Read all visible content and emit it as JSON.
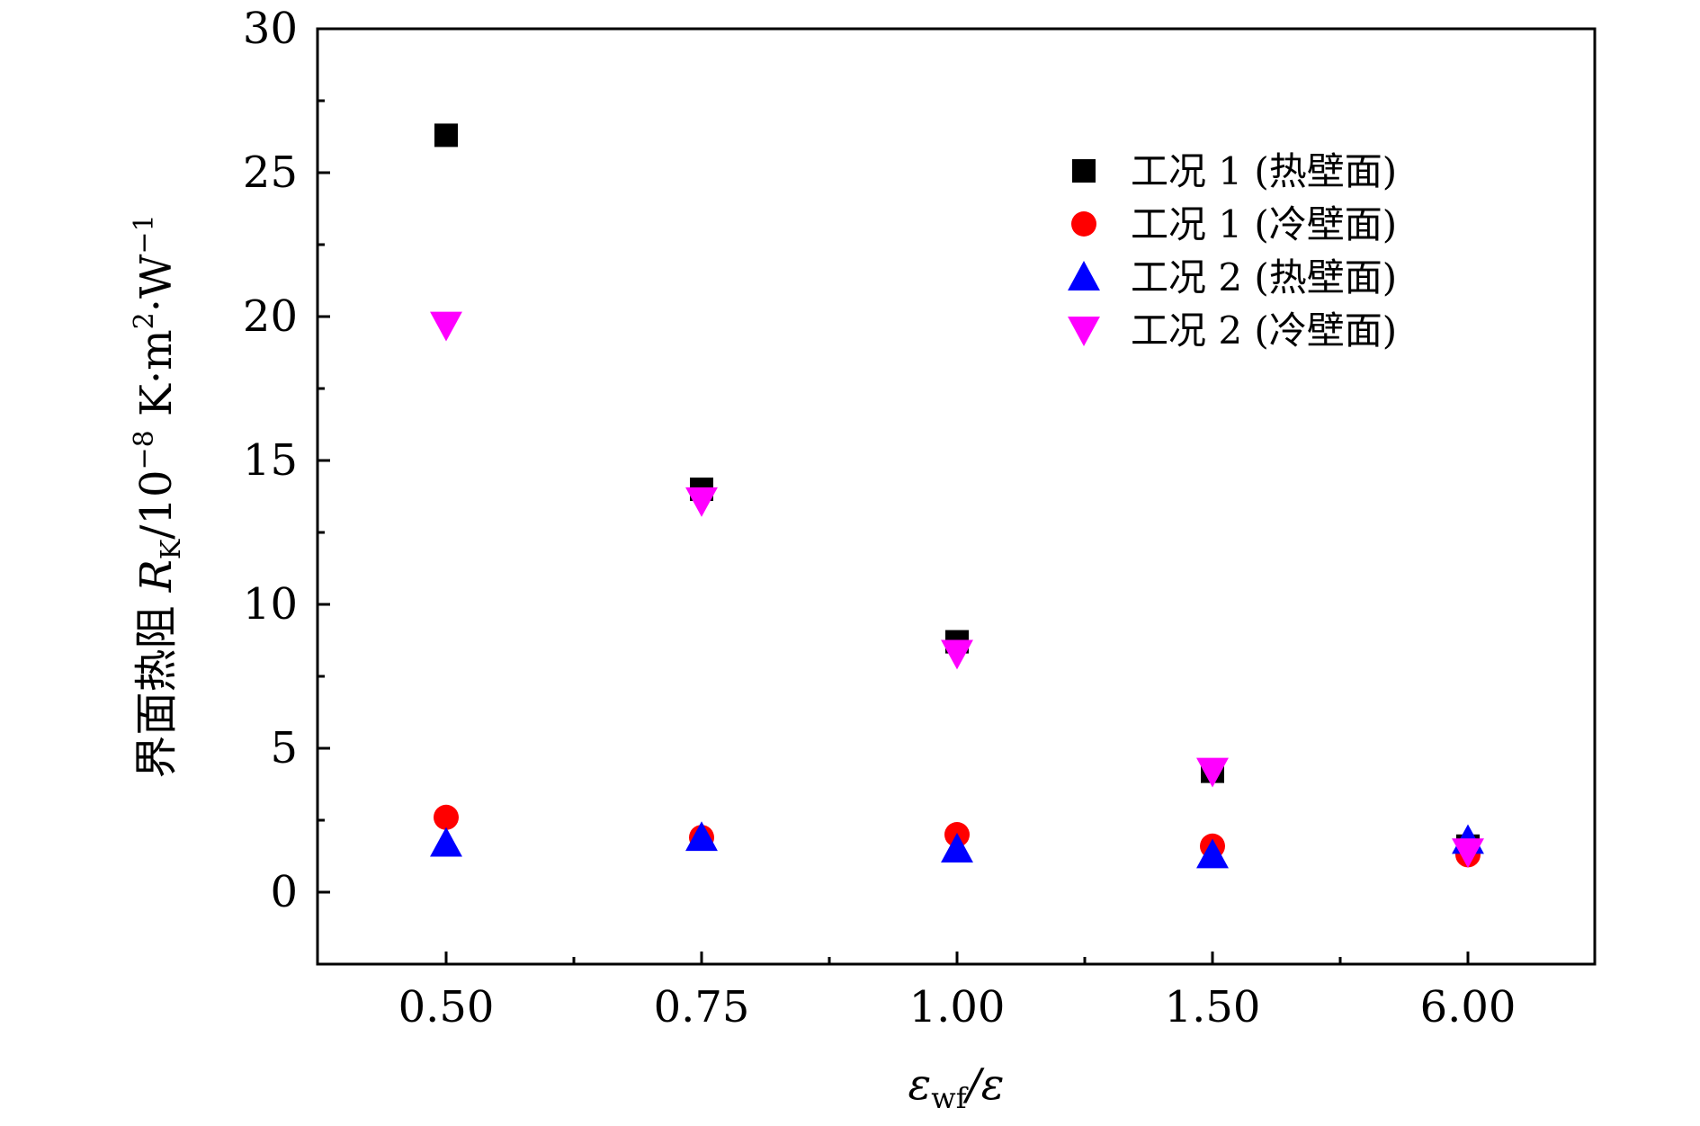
{
  "chart_data": {
    "type": "scatter",
    "xlabel": {
      "main": "ε",
      "sub": "wf",
      "tail": "/ε"
    },
    "ylabel": {
      "prefix": "界面热阻 ",
      "sym": "R",
      "sub": "K",
      "mid": "/10",
      "exp1": "−8",
      "units": " K·m",
      "exp2": "2",
      "units2": "·W",
      "exp3": "−1"
    },
    "categories": [
      "0.50",
      "0.75",
      "1.00",
      "1.50",
      "6.00"
    ],
    "ylim": [
      -2.5,
      30
    ],
    "yticks": [
      0,
      5,
      10,
      15,
      20,
      25,
      30
    ],
    "grid": false,
    "legend_position": "top-right",
    "series": [
      {
        "name": "工况 1 (热壁面)",
        "marker": "square",
        "color": "#000000",
        "values": [
          26.3,
          14.0,
          8.7,
          4.2,
          1.6
        ]
      },
      {
        "name": "工况 1 (冷壁面)",
        "marker": "circle",
        "color": "#ff0000",
        "values": [
          2.6,
          1.9,
          2.0,
          1.6,
          1.3
        ]
      },
      {
        "name": "工况 2 (热壁面)",
        "marker": "triangle-up",
        "color": "#0000ff",
        "values": [
          1.7,
          1.9,
          1.5,
          1.3,
          1.8
        ]
      },
      {
        "name": "工况 2 (冷壁面)",
        "marker": "triangle-down",
        "color": "#ff00ff",
        "values": [
          19.7,
          13.6,
          8.3,
          4.2,
          1.4
        ]
      }
    ]
  }
}
